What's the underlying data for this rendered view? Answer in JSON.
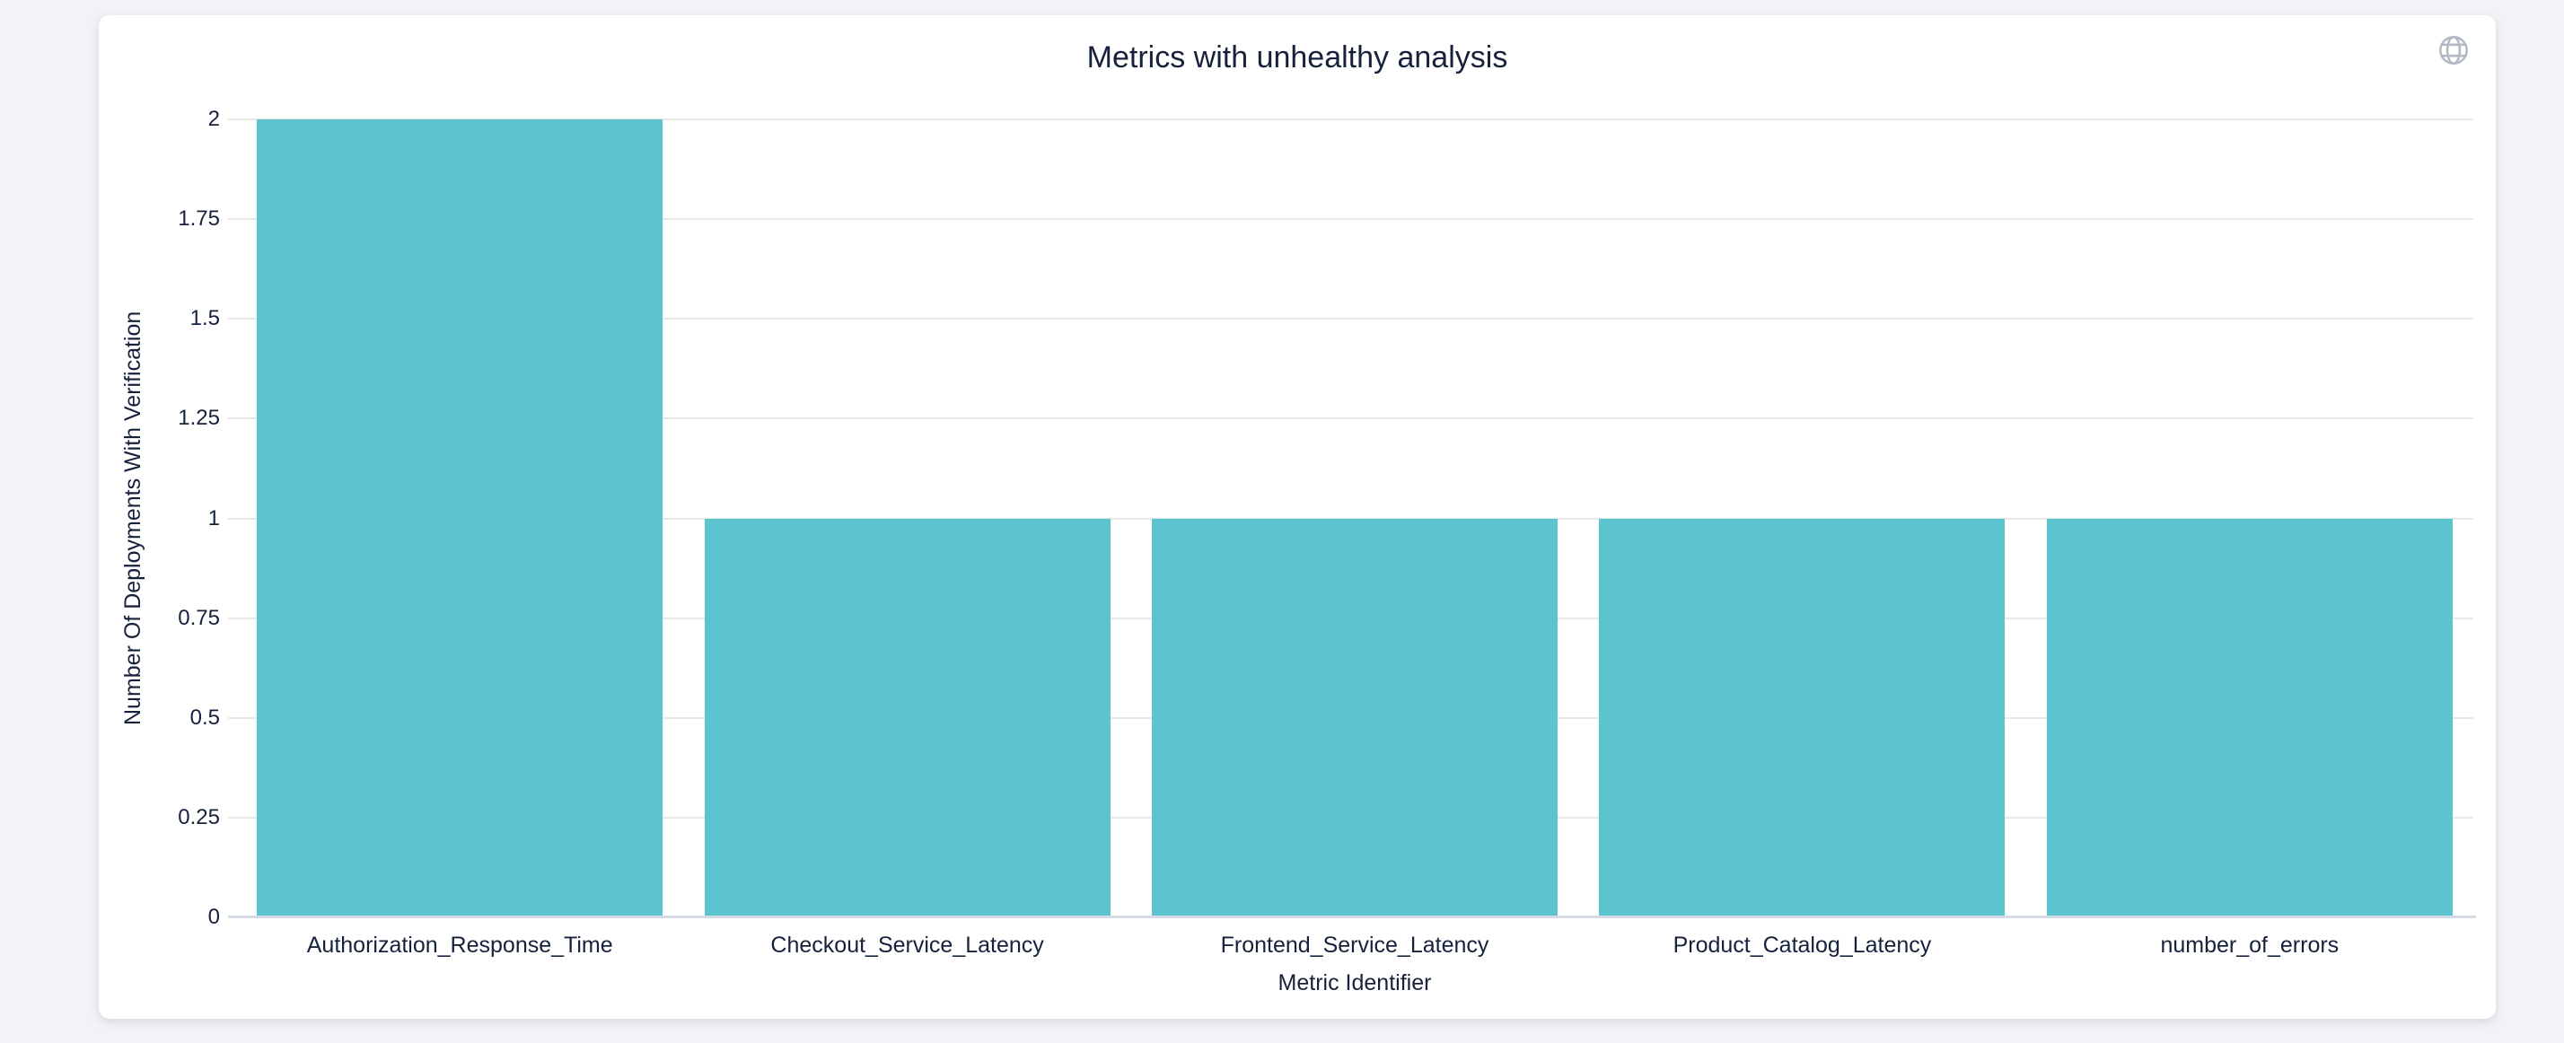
{
  "page": {
    "background": "#f2f3f6",
    "card_background": "#ffffff"
  },
  "header": {
    "title": "Metrics with unhealthy analysis",
    "icon": "globe",
    "icon_color": "#b3b9c5"
  },
  "chart_data": {
    "type": "bar",
    "title": "Metrics with unhealthy analysis",
    "xlabel": "Metric Identifier",
    "ylabel": "Number Of Deployments With Verification",
    "categories": [
      "Authorization_Response_Time",
      "Checkout_Service_Latency",
      "Frontend_Service_Latency",
      "Product_Catalog_Latency",
      "number_of_errors"
    ],
    "values": [
      2,
      1,
      1,
      1,
      1
    ],
    "yticks": [
      "0",
      "0.25",
      "0.5",
      "0.75",
      "1",
      "1.25",
      "1.5",
      "1.75",
      "2"
    ],
    "ylim": [
      0,
      2
    ],
    "grid": true,
    "legend": "none",
    "bar_color": "#5bc4ce",
    "gridline_color": "#e9e9e9",
    "axis_line_color": "#d5dbe7",
    "text_color": "#16223c"
  }
}
